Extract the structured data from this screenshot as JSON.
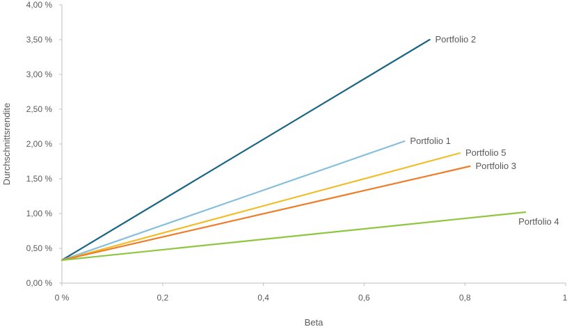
{
  "chart_data": {
    "type": "line",
    "xlabel": "Beta",
    "ylabel": "Durchschnittsrendite",
    "xlim": [
      0,
      1
    ],
    "ylim": [
      0,
      4
    ],
    "x_ticks": [
      0,
      0.2,
      0.4,
      0.6,
      0.8,
      1
    ],
    "x_tick_labels": [
      "0 %",
      "0,2",
      "0,4",
      "0,6",
      "0,8",
      "1"
    ],
    "y_ticks": [
      0,
      0.5,
      1,
      1.5,
      2,
      2.5,
      3,
      3.5,
      4
    ],
    "y_tick_labels": [
      "0,00 %",
      "0,50 %",
      "1,00 %",
      "1,50 %",
      "2,00 %",
      "2,50 %",
      "3,00 %",
      "3,50 %",
      "4,00 %"
    ],
    "grid": false,
    "series": [
      {
        "name": "Portfolio 2",
        "color": "#1a6485",
        "x": [
          0,
          0.73
        ],
        "y": [
          0.33,
          3.5
        ]
      },
      {
        "name": "Portfolio 1",
        "color": "#86bfdc",
        "x": [
          0,
          0.68
        ],
        "y": [
          0.33,
          2.04
        ]
      },
      {
        "name": "Portfolio 5",
        "color": "#f2bd2a",
        "x": [
          0,
          0.79
        ],
        "y": [
          0.33,
          1.87
        ]
      },
      {
        "name": "Portfolio 3",
        "color": "#ee7d2a",
        "x": [
          0,
          0.81
        ],
        "y": [
          0.33,
          1.68
        ]
      },
      {
        "name": "Portfolio 4",
        "color": "#8dc63f",
        "x": [
          0,
          0.92
        ],
        "y": [
          0.33,
          1.02
        ]
      }
    ]
  }
}
